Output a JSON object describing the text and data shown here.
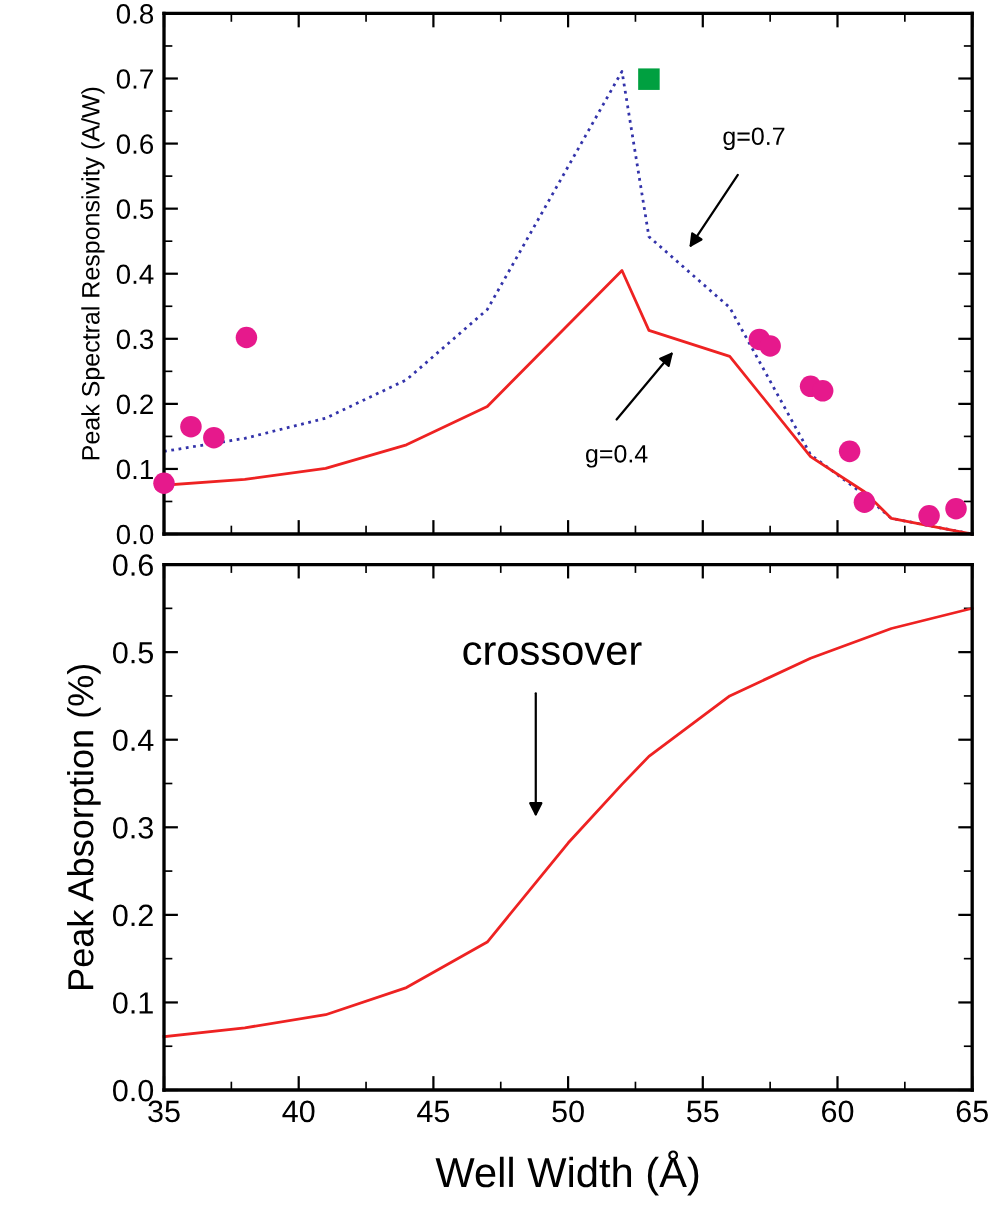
{
  "chart_data": [
    {
      "type": "line",
      "ylabel": "Peak Spectral Responsivity (A/W)",
      "xlim": [
        35,
        65
      ],
      "xticks": [
        35,
        40,
        45,
        50,
        55,
        60,
        65
      ],
      "ylim": [
        0,
        0.8
      ],
      "yticks": [
        {
          "value": 0,
          "label": "0.0"
        },
        0.1,
        0.2,
        0.3,
        0.4,
        0.5,
        0.6,
        0.7,
        0.8
      ],
      "tick_labels": "y",
      "grid": false,
      "legend": false,
      "series": [
        {
          "color": "#3333aa",
          "line_style": "dotted",
          "marker": "none",
          "x": [
            35,
            38,
            41,
            44,
            47,
            52,
            53,
            56,
            59,
            61,
            62,
            65
          ],
          "values": [
            0.127,
            0.147,
            0.178,
            0.237,
            0.345,
            0.711,
            0.457,
            0.348,
            0.122,
            0.06,
            0.024,
            0.0
          ]
        },
        {
          "color": "#ee2222",
          "line_style": "solid",
          "marker": "none",
          "x": [
            35,
            38,
            41,
            44,
            47,
            52,
            53,
            56,
            59,
            61,
            62,
            65
          ],
          "values": [
            0.075,
            0.084,
            0.101,
            0.137,
            0.196,
            0.405,
            0.313,
            0.273,
            0.119,
            0.065,
            0.024,
            0.0
          ]
        },
        {
          "type": "scatter",
          "color": "#e6198c",
          "marker": "circle",
          "x": [
            35,
            36.0,
            36.85,
            38.06,
            57.1,
            57.5,
            59.0,
            59.45,
            60.45,
            61.0,
            63.4,
            64.4
          ],
          "values": [
            0.078,
            0.165,
            0.148,
            0.302,
            0.299,
            0.289,
            0.227,
            0.22,
            0.127,
            0.049,
            0.028,
            0.039
          ]
        },
        {
          "type": "scatter",
          "color": "#00a040",
          "marker": "square",
          "x": [
            53.0
          ],
          "values": [
            0.699
          ]
        }
      ],
      "annotations": [
        "g=0.7",
        "g=0.4"
      ]
    },
    {
      "type": "line",
      "xlabel": "Well Width (Å)",
      "ylabel": "Peak Absorption (%)",
      "xlim": [
        35,
        65
      ],
      "xticks": [
        35,
        40,
        45,
        50,
        55,
        60,
        65
      ],
      "ylim": [
        0,
        0.6
      ],
      "yticks": [
        {
          "value": 0,
          "label": "0.0"
        },
        0.1,
        0.2,
        0.3,
        0.4,
        0.5,
        0.6
      ],
      "grid": false,
      "legend": false,
      "series": [
        {
          "color": "#ee2222",
          "line_style": "solid",
          "marker": "none",
          "x": [
            35,
            38,
            41,
            44,
            47,
            50,
            52,
            53,
            56,
            59,
            62,
            65
          ],
          "values": [
            0.061,
            0.071,
            0.086,
            0.117,
            0.169,
            0.282,
            0.349,
            0.381,
            0.45,
            0.493,
            0.527,
            0.55
          ]
        }
      ],
      "annotations": [
        "crossover"
      ]
    }
  ]
}
